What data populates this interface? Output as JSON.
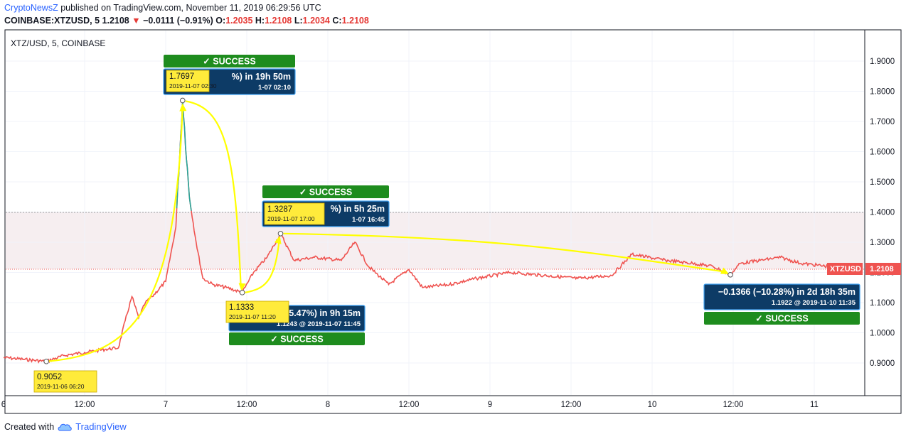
{
  "header": {
    "brand": "CryptoNewsZ",
    "published": " published on TradingView.com, November 11, 2019 06:29:56 UTC",
    "symbol_interval": "COINBASE:XTZUSD, 5",
    "last": "1.2108",
    "down_arrow": "▼",
    "change": "−0.0111 (−0.91%)",
    "o_label": "O:",
    "o_val": "1.2035",
    "h_label": "H:",
    "h_val": "1.2108",
    "l_label": "L:",
    "l_val": "1.2034",
    "c_label": "C:",
    "c_val": "1.2108"
  },
  "footer": {
    "created_with": "Created with",
    "brand": "TradingView"
  },
  "colors": {
    "line": "#ef5350",
    "highlight": "#26a69a",
    "arrow": "#ffff00",
    "success": "#1e8c1e",
    "label_blue": "#0d3b66",
    "label_yellow": "#ffeb3b",
    "price_tag": "#ef5350"
  },
  "chart_data": {
    "type": "line",
    "symbol_label": "XTZ/USD, 5, COINBASE",
    "ylim": [
      0.84,
      1.975
    ],
    "y_ticks": [
      "0.9000",
      "1.0000",
      "1.1000",
      "1.2000",
      "1.3000",
      "1.4000",
      "1.5000",
      "1.6000",
      "1.7000",
      "1.8000",
      "1.9000"
    ],
    "x_ticks": [
      "6",
      "12:00",
      "7",
      "12:00",
      "8",
      "12:00",
      "9",
      "12:00",
      "10",
      "12:00",
      "11"
    ],
    "current_price_label": "XTZUSD",
    "current_price": "1.2108",
    "series": [
      {
        "values_by_time": [
          [
            "2019-11-06 00:00",
            0.918
          ],
          [
            "2019-11-06 03:00",
            0.912
          ],
          [
            "2019-11-06 06:20",
            0.9052
          ],
          [
            "2019-11-06 09:00",
            0.925
          ],
          [
            "2019-11-06 12:00",
            0.935
          ],
          [
            "2019-11-06 15:00",
            0.945
          ],
          [
            "2019-11-06 17:00",
            0.95
          ],
          [
            "2019-11-06 18:00",
            1.04
          ],
          [
            "2019-11-06 19:00",
            1.12
          ],
          [
            "2019-11-06 20:00",
            1.05
          ],
          [
            "2019-11-06 21:00",
            1.1
          ],
          [
            "2019-11-06 22:00",
            1.12
          ],
          [
            "2019-11-07 00:00",
            1.17
          ],
          [
            "2019-11-07 01:30",
            1.35
          ],
          [
            "2019-11-07 02:30",
            1.7697
          ],
          [
            "2019-11-07 03:30",
            1.45
          ],
          [
            "2019-11-07 04:30",
            1.3
          ],
          [
            "2019-11-07 05:30",
            1.18
          ],
          [
            "2019-11-07 07:00",
            1.16
          ],
          [
            "2019-11-07 09:00",
            1.15
          ],
          [
            "2019-11-07 11:20",
            1.1333
          ],
          [
            "2019-11-07 13:00",
            1.2
          ],
          [
            "2019-11-07 15:00",
            1.25
          ],
          [
            "2019-11-07 17:00",
            1.3287
          ],
          [
            "2019-11-07 19:00",
            1.24
          ],
          [
            "2019-11-07 22:00",
            1.25
          ],
          [
            "2019-11-08 02:00",
            1.24
          ],
          [
            "2019-11-08 04:00",
            1.3
          ],
          [
            "2019-11-08 06:00",
            1.22
          ],
          [
            "2019-11-08 09:00",
            1.16
          ],
          [
            "2019-11-08 12:00",
            1.21
          ],
          [
            "2019-11-08 14:00",
            1.15
          ],
          [
            "2019-11-08 18:00",
            1.16
          ],
          [
            "2019-11-08 22:00",
            1.18
          ],
          [
            "2019-11-09 03:00",
            1.2
          ],
          [
            "2019-11-09 08:00",
            1.19
          ],
          [
            "2019-11-09 13:00",
            1.18
          ],
          [
            "2019-11-09 18:00",
            1.19
          ],
          [
            "2019-11-09 21:00",
            1.26
          ],
          [
            "2019-11-10 02:00",
            1.24
          ],
          [
            "2019-11-10 06:00",
            1.23
          ],
          [
            "2019-11-10 09:00",
            1.22
          ],
          [
            "2019-11-10 11:35",
            1.1922
          ],
          [
            "2019-11-10 13:00",
            1.23
          ],
          [
            "2019-11-10 16:00",
            1.24
          ],
          [
            "2019-11-10 19:00",
            1.25
          ],
          [
            "2019-11-10 22:00",
            1.23
          ],
          [
            "2019-11-11 02:00",
            1.22
          ],
          [
            "2019-11-11 06:25",
            1.2108
          ]
        ]
      }
    ],
    "annotations": [
      {
        "status": "SUCCESS",
        "headline": "%) in 19h 50m",
        "sub": "1-07  02:10",
        "pin_price": "1.7697",
        "pin_time": "2019-11-07 02:30"
      },
      {
        "status": "SUCCESS",
        "headline": "5.47%) in 9h 15m",
        "sub": "1.1243 @ 2019-11-07  11:45",
        "pin_price": "1.1333",
        "pin_time": "2019-11-07 11:20"
      },
      {
        "status": "SUCCESS",
        "headline": "%) in 5h 25m",
        "sub": "1-07  16:45",
        "pin_price": "1.3287",
        "pin_time": "2019-11-07 17:00"
      },
      {
        "status": "SUCCESS",
        "headline": "−0.1366 (−10.28%) in 2d 18h 35m",
        "sub": "1.1922 @ 2019-11-10  11:35"
      }
    ],
    "start_pin": {
      "price": "0.9052",
      "time": "2019-11-06 06:20"
    },
    "success_check": "✓",
    "grid": true,
    "horizontal_marker": 1.4
  }
}
